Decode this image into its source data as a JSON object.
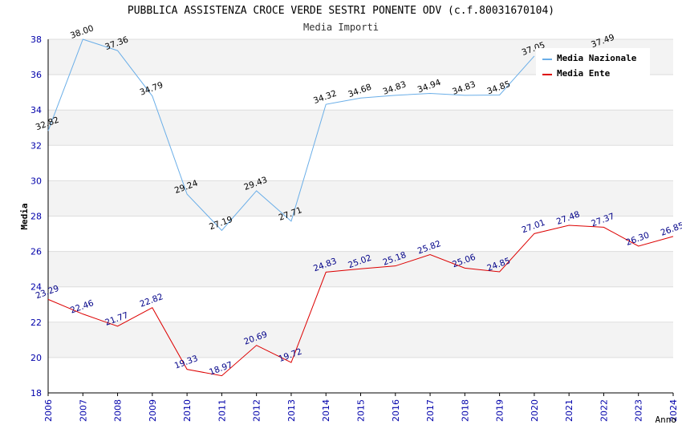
{
  "chart_data": {
    "type": "line",
    "title": "PUBBLICA ASSISTENZA CROCE VERDE SESTRI PONENTE ODV (c.f.80031670104)",
    "subtitle": "Media Importi",
    "xlabel": "Anno",
    "ylabel": "Media",
    "ylim": [
      18,
      38
    ],
    "yticks": [
      "18",
      "20",
      "22",
      "24",
      "26",
      "28",
      "30",
      "32",
      "34",
      "36",
      "38"
    ],
    "categories": [
      "2006",
      "2007",
      "2008",
      "2009",
      "2010",
      "2011",
      "2012",
      "2013",
      "2014",
      "2015",
      "2016",
      "2017",
      "2018",
      "2019",
      "2020",
      "2021",
      "2022",
      "2023",
      "2024"
    ],
    "grid": true,
    "legend_position": "top-right",
    "series": [
      {
        "name": "Media Nazionale",
        "color": "#6aaee8",
        "label_color": "#000000",
        "values": [
          32.82,
          38.0,
          37.36,
          34.79,
          29.24,
          27.19,
          29.43,
          27.71,
          34.32,
          34.68,
          34.83,
          34.94,
          34.83,
          34.85,
          37.05,
          null,
          37.49,
          null,
          null
        ],
        "labels": [
          "32.82",
          "38.00",
          "37.36",
          "34.79",
          "29.24",
          "27.19",
          "29.43",
          "27.71",
          "34.32",
          "34.68",
          "34.83",
          "34.94",
          "34.83",
          "34.85",
          "37.05",
          "",
          "37.49",
          "",
          ""
        ]
      },
      {
        "name": "Media Ente",
        "color": "#dd0000",
        "label_color": "#000088",
        "values": [
          23.29,
          22.46,
          21.77,
          22.82,
          19.33,
          18.97,
          20.69,
          19.72,
          24.83,
          25.02,
          25.18,
          25.82,
          25.06,
          24.85,
          27.01,
          27.48,
          27.37,
          26.3,
          26.85
        ],
        "labels": [
          "23.29",
          "22.46",
          "21.77",
          "22.82",
          "19.33",
          "18.97",
          "20.69",
          "19.72",
          "24.83",
          "25.02",
          "25.18",
          "25.82",
          "25.06",
          "24.85",
          "27.01",
          "27.48",
          "27.37",
          "26.30",
          "26.85"
        ]
      }
    ]
  }
}
